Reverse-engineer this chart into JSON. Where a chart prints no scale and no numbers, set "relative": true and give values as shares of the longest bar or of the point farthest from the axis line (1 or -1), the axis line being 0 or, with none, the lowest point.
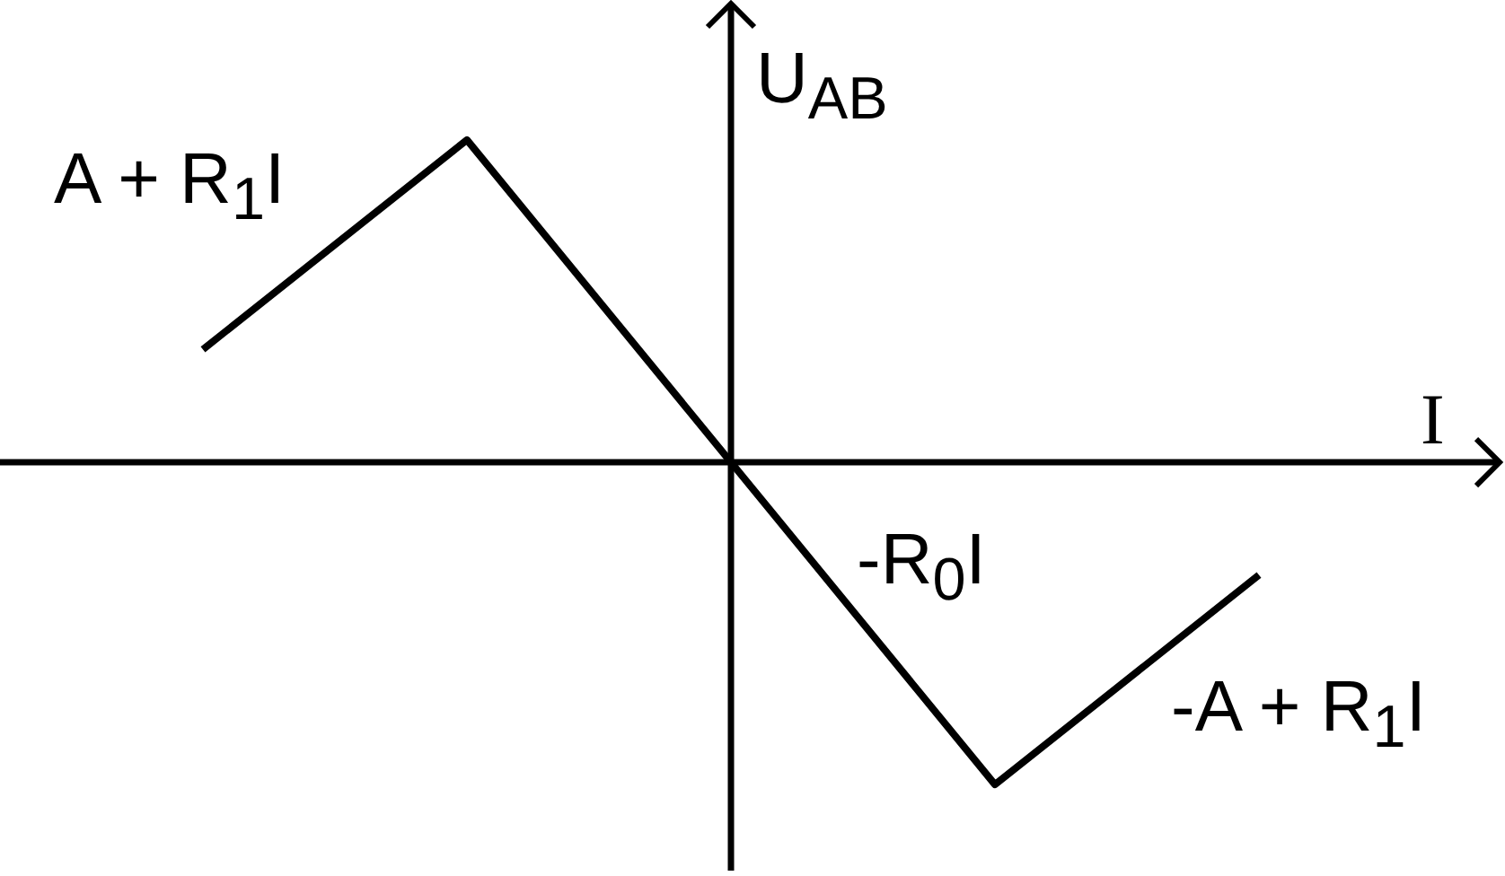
{
  "chart_data": {
    "type": "line",
    "xlabel": "I",
    "ylabel": "U$_{AB}$",
    "categories": [
      null,
      null,
      null,
      null,
      null
    ],
    "values": [
      0.35,
      1,
      0,
      -1,
      -0.35
    ],
    "color": "#000000",
    "relative": true,
    "tick_labels": false,
    "line_style": "solid",
    "annotations": [
      "A + R$_{1}$I",
      "-R$_{0}$I",
      "-A + R$_{1}$I"
    ]
  }
}
